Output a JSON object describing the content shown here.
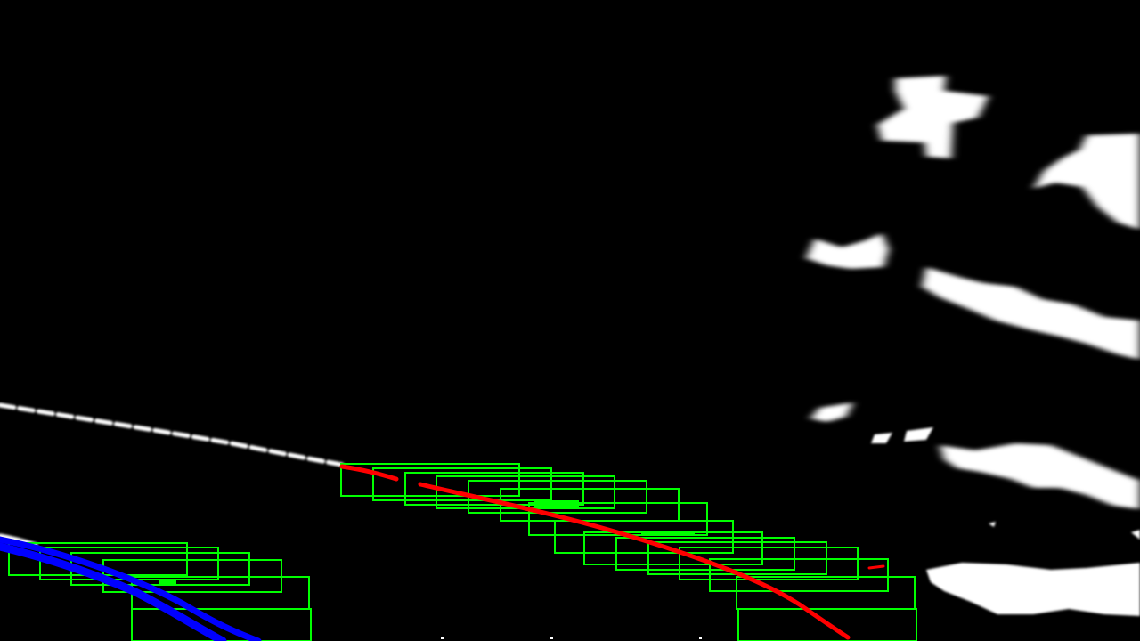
{
  "image": {
    "kind": "binary-threshold lane detection overlay",
    "background_color": "#000000",
    "lane_pixel_color": "#ffffff"
  },
  "overlays": {
    "search_window_color": "#00ff00",
    "left_lane_color": "#0000ff",
    "right_lane_color": "#ff0000",
    "left_lane_window_count": 10,
    "right_lane_window_count": 21
  }
}
